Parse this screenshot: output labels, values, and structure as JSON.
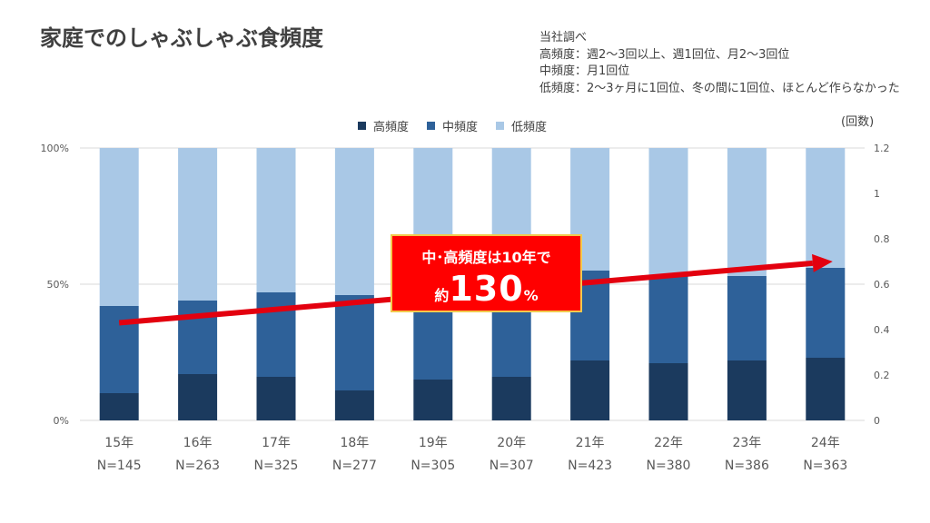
{
  "title": "家庭でのしゃぶしゃぶ食頻度",
  "notes": [
    "当社調べ",
    "高頻度：週2～3回以上、週1回位、月2～3回位",
    "中頻度：月1回位",
    "低頻度：2～3ヶ月に1回位、冬の間に1回位、ほとんど作らなかった"
  ],
  "unit_label": "(回数)",
  "callout": {
    "line1": "中･高頻度は10年で",
    "prefix": "約",
    "number": "130",
    "suffix": "%"
  },
  "colors": {
    "high": "#1b3a5e",
    "mid": "#2e6199",
    "low": "#a9c8e6",
    "arrow": "#e3000f",
    "grid": "#d9d9d9"
  },
  "chart_data": {
    "type": "bar",
    "stacked": true,
    "categories": [
      "15年",
      "16年",
      "17年",
      "18年",
      "19年",
      "20年",
      "21年",
      "22年",
      "23年",
      "24年"
    ],
    "sample_sizes": [
      "N=145",
      "N=263",
      "N=325",
      "N=277",
      "N=305",
      "N=307",
      "N=423",
      "N=380",
      "N=386",
      "N=363"
    ],
    "series": [
      {
        "name": "高頻度",
        "values": [
          10,
          17,
          16,
          11,
          15,
          16,
          22,
          21,
          22,
          23
        ]
      },
      {
        "name": "中頻度",
        "values": [
          32,
          27,
          31,
          35,
          32,
          34,
          33,
          32,
          31,
          33
        ]
      },
      {
        "name": "低頻度",
        "values": [
          58,
          56,
          53,
          54,
          53,
          50,
          45,
          47,
          47,
          44
        ]
      }
    ],
    "y_left": {
      "ticks": [
        "0%",
        "50%",
        "100%"
      ],
      "tick_values": [
        0,
        50,
        100
      ],
      "range": [
        0,
        100
      ]
    },
    "y_right": {
      "ticks": [
        "0",
        "0.2",
        "0.4",
        "0.6",
        "0.8",
        "1",
        "1.2"
      ],
      "tick_values": [
        0,
        0.2,
        0.4,
        0.6,
        0.8,
        1,
        1.2
      ],
      "range": [
        0,
        1.2
      ]
    },
    "trend_arrow": {
      "from": {
        "category": "15年",
        "value": 0.43
      },
      "to": {
        "category": "24年",
        "value": 0.7
      }
    },
    "legend": "top-center",
    "grid": true
  }
}
